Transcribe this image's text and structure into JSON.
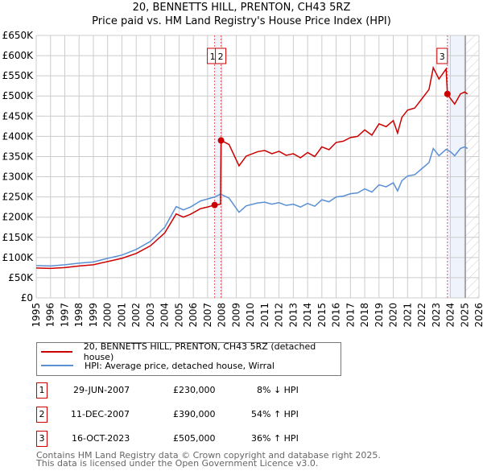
{
  "chart_data": {
    "type": "line",
    "title": "20, BENNETTS HILL, PRENTON, CH43 5RZ",
    "subtitle": "Price paid vs. HM Land Registry's House Price Index (HPI)",
    "xlim": [
      1995,
      2026
    ],
    "ylim": [
      0,
      650000
    ],
    "x_ticks": [
      "1995",
      "1996",
      "1997",
      "1998",
      "1999",
      "2000",
      "2001",
      "2002",
      "2003",
      "2004",
      "2005",
      "2006",
      "2007",
      "2008",
      "2009",
      "2010",
      "2011",
      "2012",
      "2013",
      "2014",
      "2015",
      "2016",
      "2017",
      "2018",
      "2019",
      "2020",
      "2021",
      "2022",
      "2023",
      "2024",
      "2025",
      "2026"
    ],
    "y_ticks": [
      "£0",
      "£50K",
      "£100K",
      "£150K",
      "£200K",
      "£250K",
      "£300K",
      "£350K",
      "£400K",
      "£450K",
      "£500K",
      "£550K",
      "£600K",
      "£650K"
    ],
    "grid": true,
    "series": [
      {
        "name": "20, BENNETTS HILL, PRENTON, CH43 5RZ (detached house)",
        "color": "#cc0000",
        "unit": "£K",
        "points": [
          [
            1995,
            74
          ],
          [
            1996,
            73
          ],
          [
            1997,
            75
          ],
          [
            1998,
            79
          ],
          [
            1999,
            82
          ],
          [
            2000,
            90
          ],
          [
            2001,
            98
          ],
          [
            2002,
            110
          ],
          [
            2003,
            129
          ],
          [
            2004,
            161
          ],
          [
            2004.8,
            208
          ],
          [
            2005.3,
            200
          ],
          [
            2005.8,
            207
          ],
          [
            2006.5,
            221
          ],
          [
            2007,
            225
          ],
          [
            2007.49,
            230
          ],
          [
            2007.9,
            232
          ],
          [
            2007.94,
            390
          ],
          [
            2008.5,
            380
          ],
          [
            2009.2,
            327
          ],
          [
            2009.7,
            351
          ],
          [
            2010.5,
            362
          ],
          [
            2011,
            365
          ],
          [
            2011.5,
            357
          ],
          [
            2012,
            363
          ],
          [
            2012.5,
            353
          ],
          [
            2013,
            357
          ],
          [
            2013.5,
            347
          ],
          [
            2014,
            360
          ],
          [
            2014.5,
            350
          ],
          [
            2015,
            374
          ],
          [
            2015.5,
            367
          ],
          [
            2016,
            385
          ],
          [
            2016.5,
            388
          ],
          [
            2017,
            397
          ],
          [
            2017.5,
            400
          ],
          [
            2018,
            416
          ],
          [
            2018.5,
            403
          ],
          [
            2019,
            431
          ],
          [
            2019.5,
            424
          ],
          [
            2020,
            439
          ],
          [
            2020.3,
            408
          ],
          [
            2020.6,
            447
          ],
          [
            2021,
            465
          ],
          [
            2021.5,
            470
          ],
          [
            2022,
            493
          ],
          [
            2022.5,
            516
          ],
          [
            2022.8,
            570
          ],
          [
            2023.2,
            542
          ],
          [
            2023.7,
            567
          ],
          [
            2023.79,
            505
          ],
          [
            2024,
            494
          ],
          [
            2024.3,
            480
          ],
          [
            2024.7,
            505
          ],
          [
            2025,
            510
          ],
          [
            2025.2,
            505
          ]
        ]
      },
      {
        "name": "HPI: Average price, detached house, Wirral",
        "color": "#5b8fd4",
        "unit": "£K",
        "points": [
          [
            1995,
            80
          ],
          [
            1996,
            79
          ],
          [
            1997,
            82
          ],
          [
            1998,
            86
          ],
          [
            1999,
            89
          ],
          [
            2000,
            98
          ],
          [
            2001,
            106
          ],
          [
            2002,
            120
          ],
          [
            2003,
            140
          ],
          [
            2004,
            175
          ],
          [
            2004.8,
            226
          ],
          [
            2005.3,
            218
          ],
          [
            2005.8,
            225
          ],
          [
            2006.5,
            240
          ],
          [
            2007,
            245
          ],
          [
            2007.5,
            250
          ],
          [
            2007.9,
            257
          ],
          [
            2008.5,
            247
          ],
          [
            2009.2,
            212
          ],
          [
            2009.7,
            228
          ],
          [
            2010.5,
            235
          ],
          [
            2011,
            237
          ],
          [
            2011.5,
            232
          ],
          [
            2012,
            236
          ],
          [
            2012.5,
            229
          ],
          [
            2013,
            232
          ],
          [
            2013.5,
            225
          ],
          [
            2014,
            234
          ],
          [
            2014.5,
            227
          ],
          [
            2015,
            243
          ],
          [
            2015.5,
            238
          ],
          [
            2016,
            250
          ],
          [
            2016.5,
            252
          ],
          [
            2017,
            258
          ],
          [
            2017.5,
            260
          ],
          [
            2018,
            270
          ],
          [
            2018.5,
            262
          ],
          [
            2019,
            280
          ],
          [
            2019.5,
            275
          ],
          [
            2020,
            285
          ],
          [
            2020.3,
            265
          ],
          [
            2020.6,
            290
          ],
          [
            2021,
            302
          ],
          [
            2021.5,
            305
          ],
          [
            2022,
            320
          ],
          [
            2022.5,
            335
          ],
          [
            2022.8,
            370
          ],
          [
            2023.2,
            352
          ],
          [
            2023.7,
            368
          ],
          [
            2024,
            362
          ],
          [
            2024.3,
            352
          ],
          [
            2024.7,
            370
          ],
          [
            2025,
            374
          ],
          [
            2025.2,
            370
          ]
        ]
      }
    ],
    "sales": [
      {
        "label": "1",
        "x": 2007.49,
        "value": 230,
        "date": "29-JUN-2007",
        "price": "£230,000",
        "hpi": "8% ↓ HPI"
      },
      {
        "label": "2",
        "x": 2007.94,
        "value": 390,
        "date": "11-DEC-2007",
        "price": "£390,000",
        "hpi": "54% ↑ HPI"
      },
      {
        "label": "3",
        "x": 2023.79,
        "value": 505,
        "date": "16-OCT-2023",
        "price": "£505,000",
        "hpi": "36% ↑ HPI"
      }
    ],
    "shaded_ranges": [
      [
        2007.49,
        2007.94
      ],
      [
        2023.79,
        2025.05
      ]
    ],
    "forecast_hatch_from": 2025.05
  },
  "footer": {
    "line1": "Contains HM Land Registry data © Crown copyright and database right 2025.",
    "line2": "This data is licensed under the Open Government Licence v3.0."
  }
}
